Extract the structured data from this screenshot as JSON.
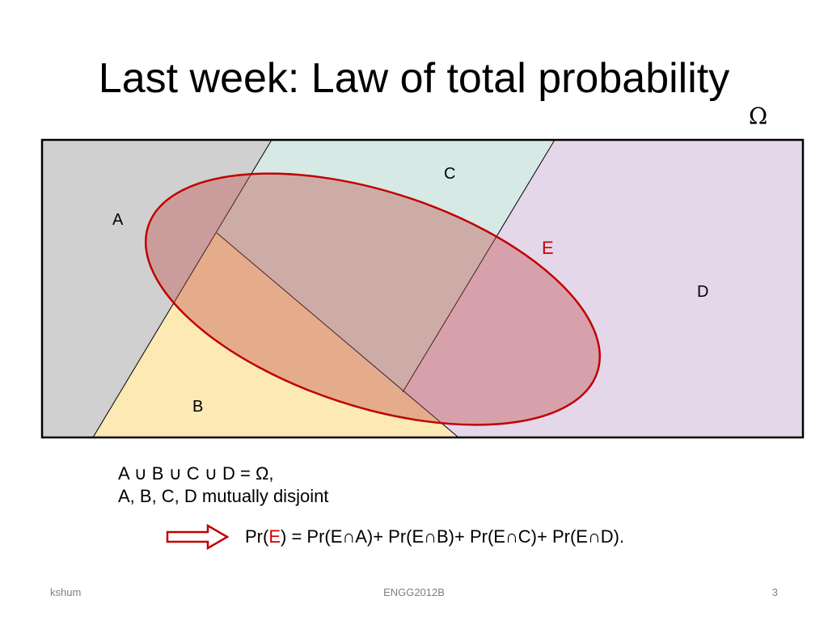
{
  "slide": {
    "title": "Last week: Law of total probability",
    "universe_symbol": "Ω"
  },
  "diagram": {
    "regions": [
      {
        "label": "A",
        "color": "#d0d0d0"
      },
      {
        "label": "B",
        "color": "#fde9b4"
      },
      {
        "label": "C",
        "color": "#d6e9e4"
      },
      {
        "label": "D",
        "color": "#e4d7ea"
      }
    ],
    "event": {
      "label": "E",
      "fill": "#c0504d",
      "outline": "#c00000",
      "label_color": "#cc0000"
    }
  },
  "statement": {
    "union_line": "A ∪ B ∪ C ∪ D = Ω,",
    "disjoint_line": "A, B, C, D mutually disjoint"
  },
  "formula": {
    "lhs_prefix": "Pr(",
    "lhs_event": "E",
    "rhs": ") = Pr(E∩A)+ Pr(E∩B)+ Pr(E∩C)+ Pr(E∩D)."
  },
  "footer": {
    "author": "kshum",
    "course": "ENGG2012B",
    "page_number": "3"
  }
}
